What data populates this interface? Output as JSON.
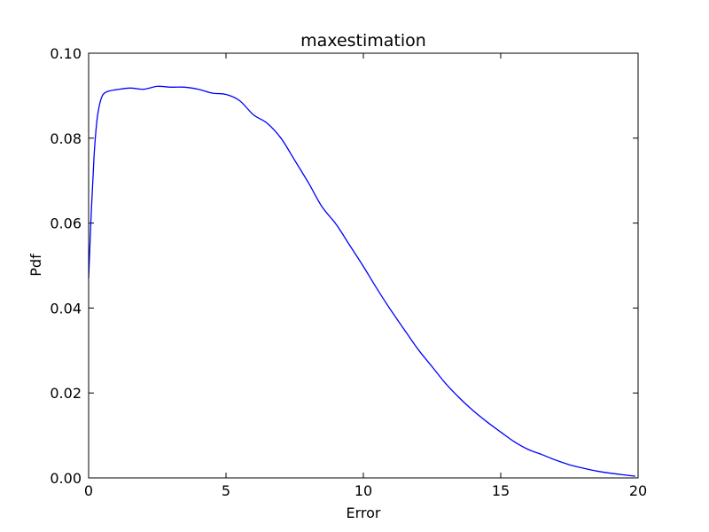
{
  "chart_data": {
    "type": "line",
    "title": "maxestimation",
    "xlabel": "Error",
    "ylabel": "Pdf",
    "xlim": [
      0,
      20
    ],
    "ylim": [
      0,
      0.1
    ],
    "xticks": [
      0,
      5,
      10,
      15,
      20
    ],
    "yticks": [
      0.0,
      0.02,
      0.04,
      0.06,
      0.08,
      0.1
    ],
    "xtick_labels": [
      "0",
      "5",
      "10",
      "15",
      "20"
    ],
    "ytick_labels": [
      "0.00",
      "0.02",
      "0.04",
      "0.06",
      "0.08",
      "0.10"
    ],
    "grid": false,
    "line_color": "#0000ff",
    "series": [
      {
        "x": [
          0.0,
          0.1,
          0.2,
          0.3,
          0.4,
          0.5,
          0.6,
          0.7,
          0.8,
          1.0,
          1.5,
          2.0,
          2.5,
          3.0,
          3.5,
          4.0,
          4.5,
          5.0,
          5.5,
          6.0,
          6.5,
          7.0,
          7.5,
          8.0,
          8.5,
          9.0,
          9.5,
          10.0,
          10.5,
          11.0,
          11.5,
          12.0,
          12.5,
          13.0,
          13.5,
          14.0,
          14.5,
          15.0,
          15.5,
          16.0,
          16.5,
          17.0,
          17.5,
          18.0,
          18.5,
          19.0,
          19.5,
          19.9
        ],
        "y": [
          0.047,
          0.063,
          0.076,
          0.084,
          0.088,
          0.09,
          0.0907,
          0.091,
          0.0912,
          0.0914,
          0.0918,
          0.0915,
          0.0922,
          0.092,
          0.092,
          0.0915,
          0.0906,
          0.0903,
          0.0888,
          0.0855,
          0.0835,
          0.08,
          0.0748,
          0.0695,
          0.0638,
          0.0598,
          0.0548,
          0.0498,
          0.0445,
          0.0395,
          0.0348,
          0.0302,
          0.0262,
          0.0222,
          0.0188,
          0.0158,
          0.0132,
          0.0108,
          0.0085,
          0.0067,
          0.0055,
          0.0042,
          0.0031,
          0.0023,
          0.0016,
          0.0011,
          0.0007,
          0.0004
        ]
      }
    ]
  }
}
